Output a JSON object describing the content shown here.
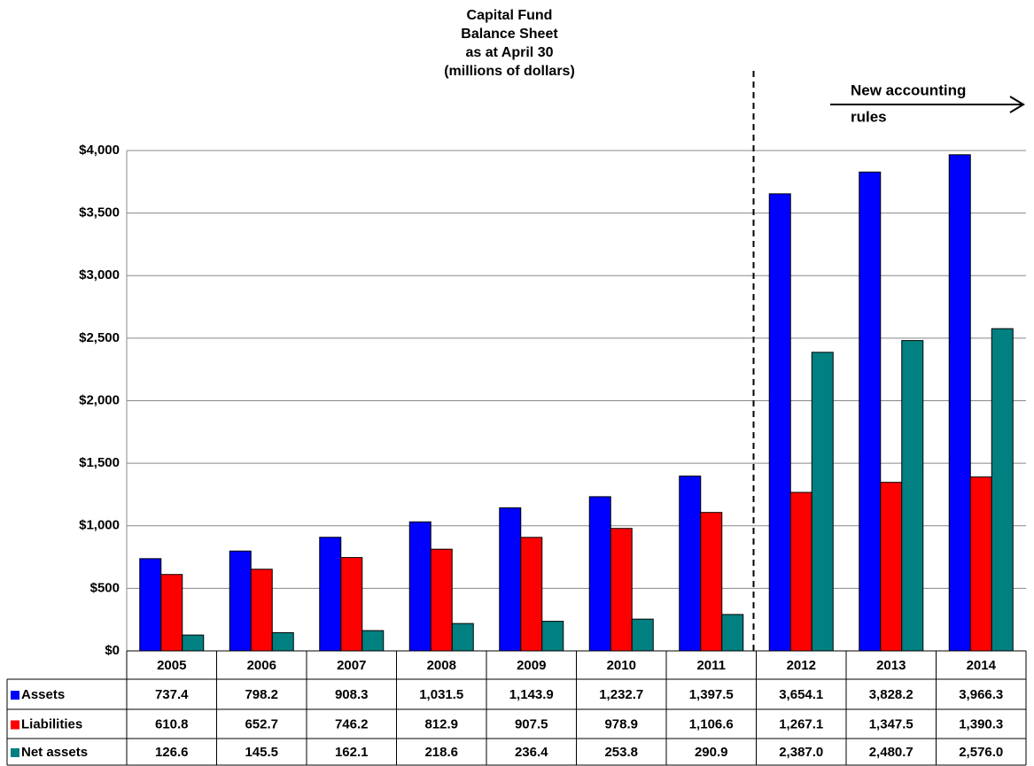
{
  "chart_data": {
    "type": "bar",
    "title": [
      "Capital Fund",
      "Balance Sheet",
      "as at April 30",
      "(millions of dollars)"
    ],
    "annotation": [
      "New accounting",
      "rules"
    ],
    "categories": [
      "2005",
      "2006",
      "2007",
      "2008",
      "2009",
      "2010",
      "2011",
      "2012",
      "2013",
      "2014"
    ],
    "series": [
      {
        "name": "Assets",
        "color": "#0000ff",
        "values": [
          737.4,
          798.2,
          908.3,
          1031.5,
          1143.9,
          1232.7,
          1397.5,
          3654.1,
          3828.2,
          3966.3
        ],
        "value_labels": [
          "737.4",
          "798.2",
          "908.3",
          "1,031.5",
          "1,143.9",
          "1,232.7",
          "1,397.5",
          "3,654.1",
          "3,828.2",
          "3,966.3"
        ]
      },
      {
        "name": "Liabilities",
        "color": "#ff0000",
        "values": [
          610.8,
          652.7,
          746.2,
          812.9,
          907.5,
          978.9,
          1106.6,
          1267.1,
          1347.5,
          1390.3
        ],
        "value_labels": [
          "610.8",
          "652.7",
          "746.2",
          "812.9",
          "907.5",
          "978.9",
          "1,106.6",
          "1,267.1",
          "1,347.5",
          "1,390.3"
        ]
      },
      {
        "name": "Net assets",
        "color": "#008080",
        "values": [
          126.6,
          145.5,
          162.1,
          218.6,
          236.4,
          253.8,
          290.9,
          2387.0,
          2480.7,
          2576.0
        ],
        "value_labels": [
          "126.6",
          "145.5",
          "162.1",
          "218.6",
          "236.4",
          "253.8",
          "290.9",
          "2,387.0",
          "2,480.7",
          "2,576.0"
        ]
      }
    ],
    "ylim": [
      0,
      4000
    ],
    "yticks": [
      {
        "value": 0,
        "label": "$0"
      },
      {
        "value": 500,
        "label": "$500"
      },
      {
        "value": 1000,
        "label": "$1,000"
      },
      {
        "value": 1500,
        "label": "$1,500"
      },
      {
        "value": 2000,
        "label": "$2,000"
      },
      {
        "value": 2500,
        "label": "$2,500"
      },
      {
        "value": 3000,
        "label": "$3,000"
      },
      {
        "value": 3500,
        "label": "$3,500"
      },
      {
        "value": 4000,
        "label": "$4,000"
      }
    ],
    "grid": true
  }
}
